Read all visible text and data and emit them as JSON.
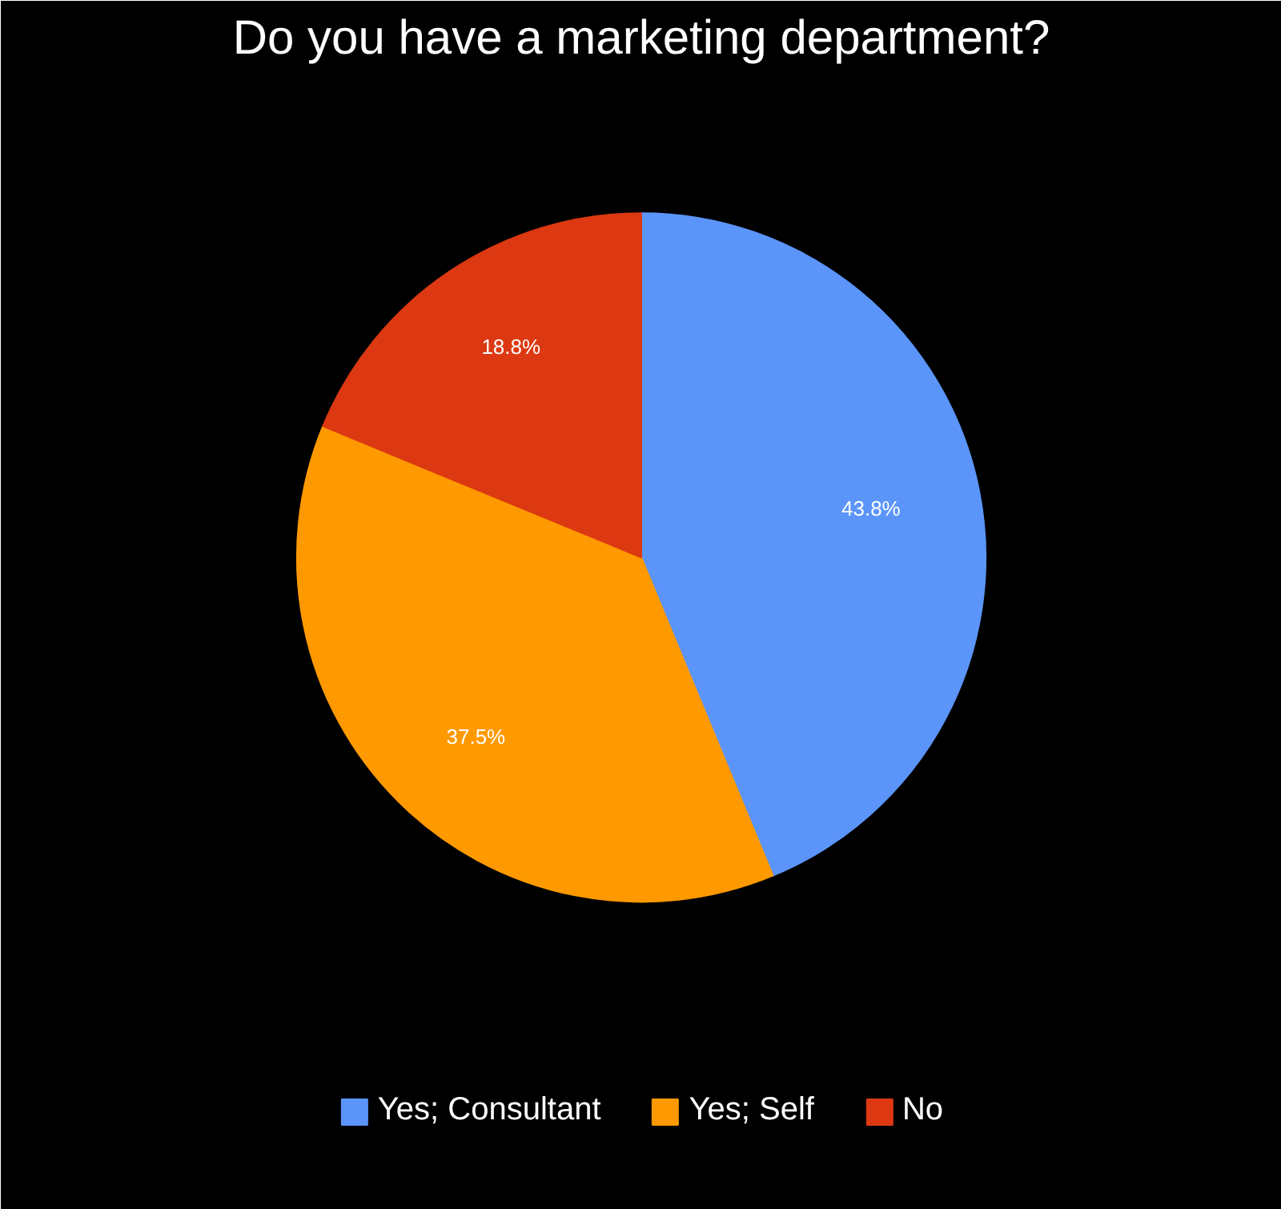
{
  "chart_data": {
    "type": "pie",
    "title": "Do you have a marketing department?",
    "categories": [
      "Yes; Consultant",
      "Yes; Self",
      "No"
    ],
    "values": [
      43.8,
      37.5,
      18.8
    ],
    "colors": [
      "#5b95f9",
      "#ff9900",
      "#dc3912"
    ],
    "value_labels": [
      "43.8%",
      "37.5%",
      "18.8%"
    ],
    "legend": "bottom"
  }
}
